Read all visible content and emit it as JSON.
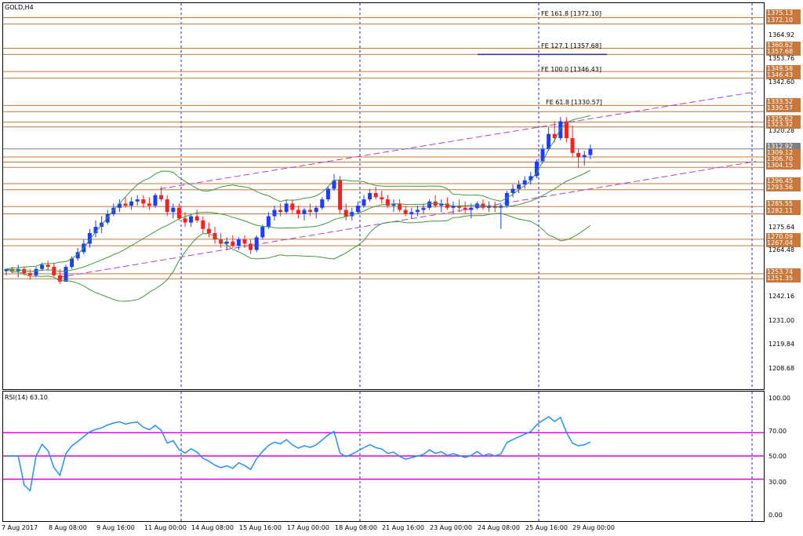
{
  "symbol_title": "GOLD,H4",
  "rsi_title": "RSI(14) 63.10",
  "price_axis": [
    "1364.92",
    "1353.76",
    "1342.60",
    "1320.28",
    "1275.64",
    "1264.48",
    "1242.16",
    "1231.00",
    "1219.84",
    "1208.68"
  ],
  "level_boxes": [
    "1375.13",
    "1372.10",
    "1360.62",
    "1357.68",
    "1349.58",
    "1346.43",
    "1333.52",
    "1330.57",
    "1325.62",
    "1323.32",
    "1312.92",
    "1309.12",
    "1306.70",
    "1304.15",
    "1296.45",
    "1293.56",
    "1285.55",
    "1282.11",
    "1270.09",
    "1267.04",
    "1253.74",
    "1251.35"
  ],
  "fe_labels": [
    "FE 161.8 [1372.10]",
    "FE 127.1 [1357.68]",
    "FE 100.0 [1346.43]",
    "FE 61.8 [1330.57]"
  ],
  "rsi_axis": [
    "100.00",
    "70.00",
    "50.00",
    "30.00",
    "0.00"
  ],
  "date_labels": [
    "7 Aug 2017",
    "8 Aug 08:00",
    "9 Aug 16:00",
    "11 Aug 00:00",
    "14 Aug 08:00",
    "15 Aug 16:00",
    "17 Aug 00:00",
    "18 Aug 08:00",
    "21 Aug 16:00",
    "23 Aug 00:00",
    "24 Aug 08:00",
    "25 Aug 16:00",
    "29 Aug 00:00"
  ],
  "colors": {
    "bull": "#1e3cff",
    "bear": "#ff1e1e",
    "level": "#c8783a",
    "band": "#3c9a3c",
    "channel": "#b040d0",
    "rsi": "#1e90ff",
    "rsi_levels": "#e000e0",
    "grid": "#2020c0"
  },
  "chart_data": {
    "type": "candlestick",
    "title": "GOLD,H4",
    "ylim": [
      1199,
      1382
    ],
    "candles": [
      [
        1255,
        1256,
        1253,
        1256
      ],
      [
        1256,
        1257,
        1254,
        1255
      ],
      [
        1255,
        1258,
        1252,
        1256
      ],
      [
        1256,
        1257,
        1253,
        1254
      ],
      [
        1254,
        1256,
        1251,
        1253
      ],
      [
        1253,
        1257,
        1252,
        1256
      ],
      [
        1256,
        1259,
        1255,
        1258
      ],
      [
        1258,
        1260,
        1255,
        1257
      ],
      [
        1257,
        1259,
        1252,
        1253
      ],
      [
        1253,
        1256,
        1249,
        1250
      ],
      [
        1250,
        1258,
        1250,
        1257
      ],
      [
        1257,
        1262,
        1256,
        1261
      ],
      [
        1261,
        1266,
        1260,
        1264
      ],
      [
        1264,
        1270,
        1263,
        1268
      ],
      [
        1268,
        1275,
        1266,
        1273
      ],
      [
        1273,
        1279,
        1271,
        1276
      ],
      [
        1276,
        1281,
        1273,
        1278
      ],
      [
        1278,
        1284,
        1277,
        1282
      ],
      [
        1282,
        1287,
        1281,
        1285
      ],
      [
        1285,
        1289,
        1283,
        1287
      ],
      [
        1287,
        1290,
        1285,
        1286
      ],
      [
        1286,
        1290,
        1284,
        1288
      ],
      [
        1288,
        1291,
        1286,
        1289
      ],
      [
        1289,
        1291,
        1285,
        1287
      ],
      [
        1287,
        1290,
        1284,
        1286
      ],
      [
        1286,
        1292,
        1285,
        1291
      ],
      [
        1291,
        1295,
        1288,
        1289
      ],
      [
        1289,
        1291,
        1281,
        1283
      ],
      [
        1283,
        1287,
        1280,
        1285
      ],
      [
        1285,
        1287,
        1279,
        1280
      ],
      [
        1280,
        1283,
        1276,
        1278
      ],
      [
        1278,
        1282,
        1276,
        1281
      ],
      [
        1281,
        1284,
        1278,
        1279
      ],
      [
        1279,
        1281,
        1273,
        1275
      ],
      [
        1275,
        1278,
        1271,
        1273
      ],
      [
        1273,
        1276,
        1268,
        1270
      ],
      [
        1270,
        1273,
        1266,
        1268
      ],
      [
        1268,
        1271,
        1265,
        1269
      ],
      [
        1269,
        1272,
        1266,
        1267
      ],
      [
        1267,
        1271,
        1265,
        1270
      ],
      [
        1270,
        1272,
        1266,
        1268
      ],
      [
        1268,
        1270,
        1263,
        1265
      ],
      [
        1265,
        1272,
        1264,
        1271
      ],
      [
        1271,
        1277,
        1270,
        1276
      ],
      [
        1276,
        1283,
        1275,
        1281
      ],
      [
        1281,
        1286,
        1279,
        1284
      ],
      [
        1284,
        1287,
        1281,
        1283
      ],
      [
        1283,
        1289,
        1282,
        1287
      ],
      [
        1287,
        1289,
        1282,
        1284
      ],
      [
        1284,
        1286,
        1280,
        1282
      ],
      [
        1282,
        1285,
        1279,
        1284
      ],
      [
        1284,
        1287,
        1281,
        1283
      ],
      [
        1283,
        1286,
        1280,
        1285
      ],
      [
        1285,
        1290,
        1284,
        1289
      ],
      [
        1289,
        1295,
        1288,
        1294
      ],
      [
        1294,
        1301,
        1293,
        1298
      ],
      [
        1298,
        1300,
        1282,
        1284
      ],
      [
        1284,
        1287,
        1279,
        1281
      ],
      [
        1281,
        1285,
        1279,
        1283
      ],
      [
        1283,
        1288,
        1282,
        1286
      ],
      [
        1286,
        1291,
        1285,
        1289
      ],
      [
        1289,
        1294,
        1288,
        1292
      ],
      [
        1292,
        1295,
        1289,
        1290
      ],
      [
        1290,
        1293,
        1287,
        1289
      ],
      [
        1289,
        1291,
        1285,
        1286
      ],
      [
        1286,
        1289,
        1283,
        1287
      ],
      [
        1287,
        1289,
        1283,
        1284
      ],
      [
        1284,
        1286,
        1281,
        1282
      ],
      [
        1282,
        1285,
        1280,
        1283
      ],
      [
        1283,
        1286,
        1281,
        1284
      ],
      [
        1284,
        1287,
        1282,
        1285
      ],
      [
        1285,
        1289,
        1284,
        1288
      ],
      [
        1288,
        1291,
        1285,
        1286
      ],
      [
        1286,
        1289,
        1283,
        1287
      ],
      [
        1287,
        1290,
        1284,
        1285
      ],
      [
        1285,
        1288,
        1282,
        1286
      ],
      [
        1286,
        1289,
        1283,
        1285
      ],
      [
        1285,
        1288,
        1282,
        1284
      ],
      [
        1284,
        1287,
        1280,
        1285
      ],
      [
        1285,
        1288,
        1284,
        1287
      ],
      [
        1287,
        1289,
        1284,
        1285
      ],
      [
        1285,
        1288,
        1283,
        1286
      ],
      [
        1286,
        1288,
        1283,
        1285
      ],
      [
        1285,
        1287,
        1275,
        1286
      ],
      [
        1286,
        1293,
        1285,
        1292
      ],
      [
        1292,
        1296,
        1290,
        1294
      ],
      [
        1294,
        1298,
        1292,
        1296
      ],
      [
        1296,
        1300,
        1294,
        1298
      ],
      [
        1298,
        1302,
        1296,
        1300
      ],
      [
        1300,
        1308,
        1299,
        1307
      ],
      [
        1307,
        1315,
        1306,
        1313
      ],
      [
        1313,
        1323,
        1312,
        1320
      ],
      [
        1320,
        1326,
        1316,
        1318
      ],
      [
        1318,
        1328,
        1317,
        1326
      ],
      [
        1326,
        1328,
        1316,
        1318
      ],
      [
        1318,
        1324,
        1309,
        1311
      ],
      [
        1311,
        1313,
        1304,
        1309
      ],
      [
        1309,
        1312,
        1305,
        1310
      ],
      [
        1310,
        1315,
        1308,
        1313
      ]
    ]
  }
}
